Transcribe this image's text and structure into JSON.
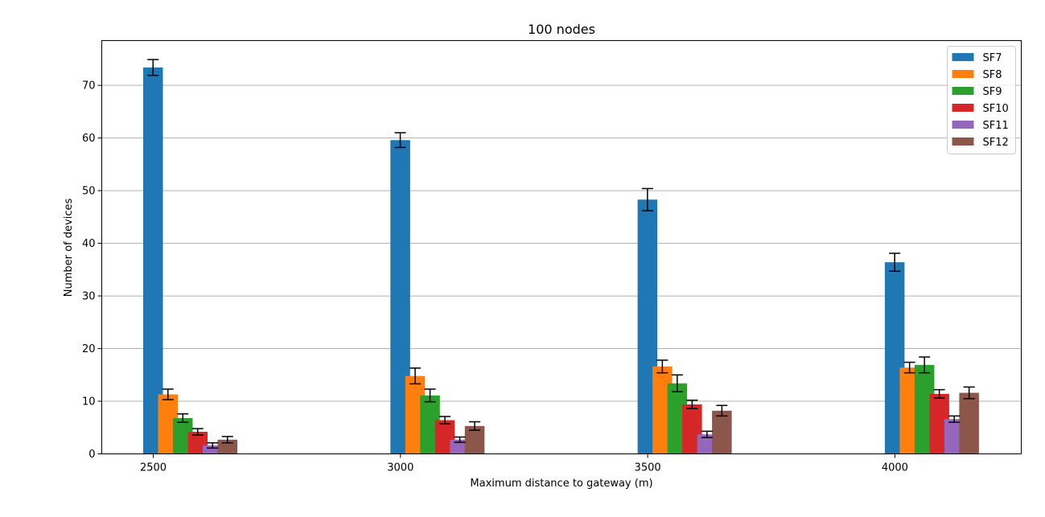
{
  "chart_data": {
    "type": "bar",
    "title": "100 nodes",
    "xlabel": "Maximum distance to gateway (m)",
    "ylabel": "Number of devices",
    "categories": [
      "2500",
      "3000",
      "3500",
      "4000"
    ],
    "x_ticks": [
      "2500",
      "3000",
      "3500",
      "4000"
    ],
    "y_ticks": [
      "0",
      "10",
      "20",
      "30",
      "40",
      "50",
      "60",
      "70"
    ],
    "ylim": [
      0,
      78.5
    ],
    "grid": "horizontal",
    "legend_position": "top-right",
    "error_bars": true,
    "series": [
      {
        "name": "SF7",
        "color": "#1f77b4",
        "values": [
          73.4,
          59.6,
          48.3,
          36.4
        ],
        "errors": [
          1.5,
          1.4,
          2.1,
          1.7
        ]
      },
      {
        "name": "SF8",
        "color": "#ff7f0e",
        "values": [
          11.3,
          14.8,
          16.6,
          16.4
        ],
        "errors": [
          1.0,
          1.5,
          1.2,
          1.0
        ]
      },
      {
        "name": "SF9",
        "color": "#2ca02c",
        "values": [
          6.8,
          11.1,
          13.4,
          16.9
        ],
        "errors": [
          0.8,
          1.2,
          1.6,
          1.5
        ]
      },
      {
        "name": "SF10",
        "color": "#d62728",
        "values": [
          4.2,
          6.4,
          9.4,
          11.4
        ],
        "errors": [
          0.6,
          0.7,
          0.8,
          0.8
        ]
      },
      {
        "name": "SF11",
        "color": "#9467bd",
        "values": [
          1.6,
          2.7,
          3.7,
          6.6
        ],
        "errors": [
          0.5,
          0.5,
          0.6,
          0.6
        ]
      },
      {
        "name": "SF12",
        "color": "#8c564b",
        "values": [
          2.7,
          5.3,
          8.2,
          11.6
        ],
        "errors": [
          0.6,
          0.8,
          1.0,
          1.1
        ]
      }
    ]
  }
}
